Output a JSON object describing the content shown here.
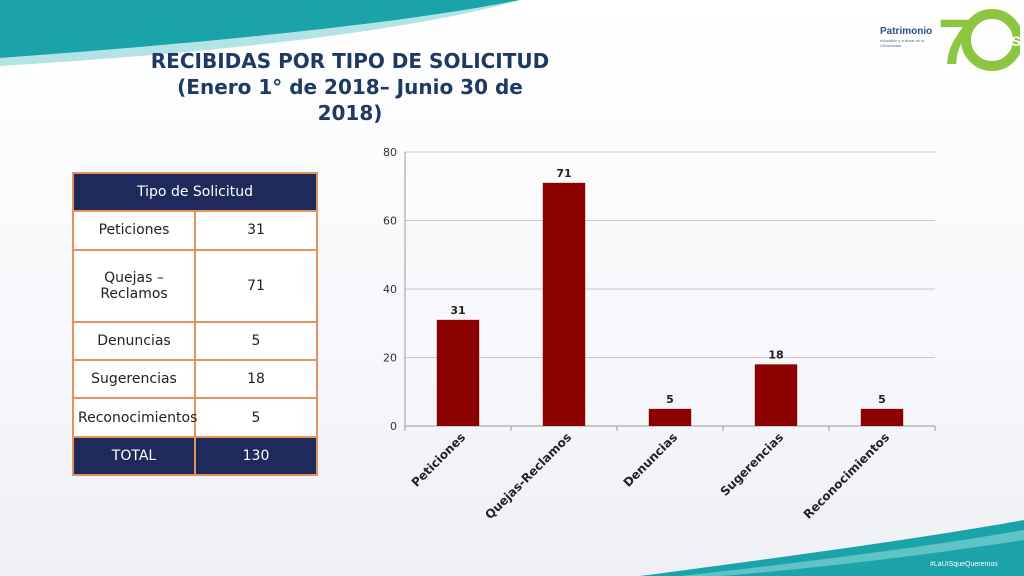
{
  "title": "RECIBIDAS POR TIPO DE SOLICITUD (Enero 1° de 2018– Junio 30 de 2018)",
  "logo": {
    "name": "Patrimonio",
    "tagline": "educativo y cultural de la Universidad",
    "mark": "70 UIS",
    "icon": "uis-70-anniversary-logo"
  },
  "hashtag": "#LaUISqueQueremos",
  "table": {
    "header": "Tipo de Solicitud",
    "rows": [
      {
        "label": "Peticiones",
        "value": "31"
      },
      {
        "label": "Quejas – Reclamos",
        "value": "71"
      },
      {
        "label": "Denuncias",
        "value": "5"
      },
      {
        "label": "Sugerencias",
        "value": "18"
      },
      {
        "label": "Reconocimientos",
        "value": "5"
      }
    ],
    "total_label": "TOTAL",
    "total_value": "130"
  },
  "colors": {
    "bar": "#8b0000",
    "table_header": "#1f2a5c",
    "table_border": "#e0935a",
    "title": "#1f3864",
    "teal": "#1aa3a8"
  },
  "chart_data": {
    "type": "bar",
    "categories": [
      "Peticiones",
      "Quejas-Reclamos",
      "Denuncias",
      "Sugerencias",
      "Reconocimientos"
    ],
    "values": [
      31,
      71,
      5,
      18,
      5
    ],
    "ylim": [
      0,
      80
    ],
    "yticks": [
      0,
      20,
      40,
      60,
      80
    ],
    "grid": true,
    "data_labels": true
  }
}
